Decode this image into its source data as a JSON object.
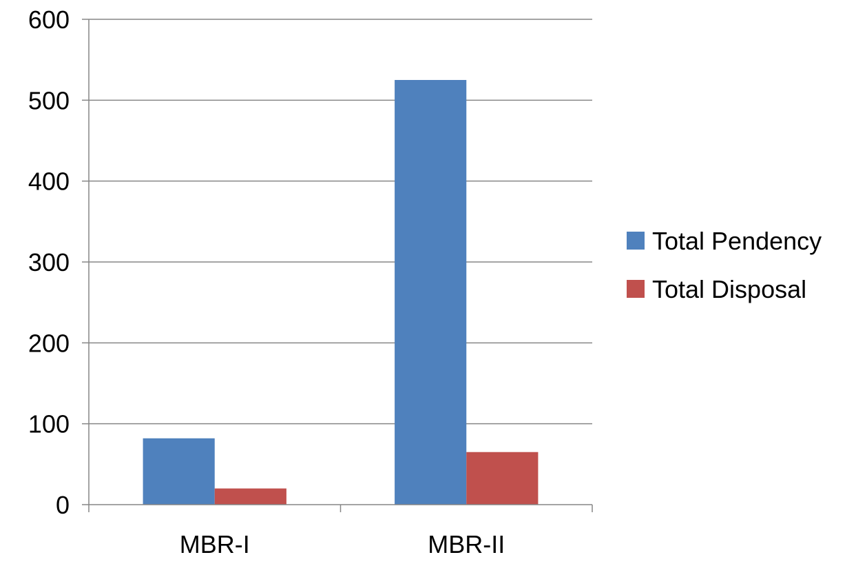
{
  "chart_data": {
    "type": "bar",
    "title": "",
    "xlabel": "",
    "ylabel": "",
    "categories": [
      "MBR-I",
      "MBR-II"
    ],
    "series": [
      {
        "name": "Total Pendency",
        "values": [
          82,
          525
        ],
        "color": "#4F81BD"
      },
      {
        "name": "Total Disposal",
        "values": [
          20,
          65
        ],
        "color": "#C0504D"
      }
    ],
    "ylim": [
      0,
      600
    ],
    "yticks": [
      0,
      100,
      200,
      300,
      400,
      500,
      600
    ],
    "grid": true,
    "legend": "right"
  }
}
